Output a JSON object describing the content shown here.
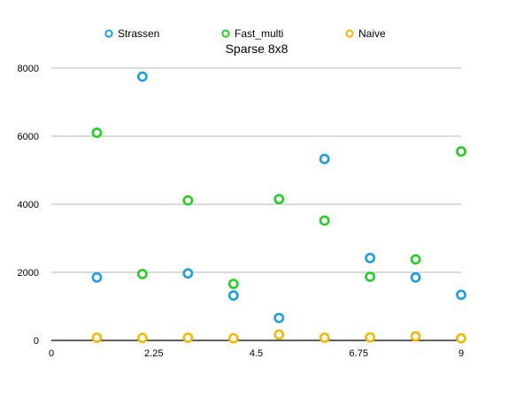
{
  "chart_data": {
    "type": "scatter",
    "title": "Sparse 8x8",
    "xlabel": "",
    "ylabel": "",
    "xlim": [
      0,
      9
    ],
    "ylim": [
      0,
      8000
    ],
    "xticks": [
      0,
      2.25,
      4.5,
      6.75,
      9
    ],
    "xtick_labels": [
      "0",
      "2.25",
      "4.5",
      "6.75",
      "9"
    ],
    "yticks": [
      0,
      2000,
      4000,
      6000,
      8000
    ],
    "ytick_labels": [
      "0",
      "2000",
      "4000",
      "6000",
      "8000"
    ],
    "grid": "horizontal",
    "legend_position": "top",
    "series": [
      {
        "name": "Strassen",
        "color": "#1a9ee8",
        "x": [
          1,
          2,
          3,
          4,
          5,
          6,
          7,
          8,
          9
        ],
        "y": [
          1850,
          7750,
          1970,
          1320,
          660,
          5330,
          2420,
          1850,
          1340
        ]
      },
      {
        "name": "Fast_multi",
        "color": "#22d022",
        "x": [
          1,
          2,
          3,
          4,
          5,
          6,
          7,
          8,
          9
        ],
        "y": [
          6100,
          1950,
          4110,
          1660,
          4150,
          3520,
          1870,
          2380,
          5550
        ]
      },
      {
        "name": "Naive",
        "color": "#f5b800",
        "x": [
          1,
          2,
          3,
          4,
          5,
          6,
          7,
          8,
          9
        ],
        "y": [
          80,
          70,
          80,
          60,
          170,
          80,
          90,
          120,
          60
        ]
      }
    ]
  }
}
